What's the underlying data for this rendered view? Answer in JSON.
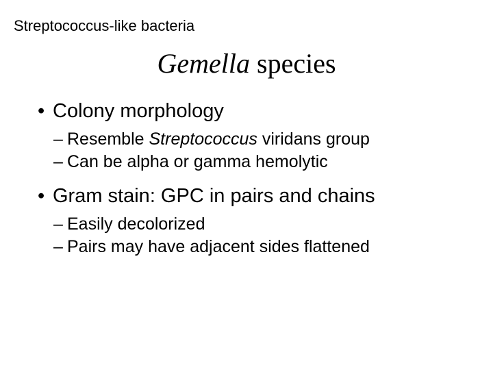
{
  "header": "Streptococcus-like bacteria",
  "title": {
    "italic_part": "Gemella",
    "plain_part": " species"
  },
  "bullets": [
    {
      "text": "Colony morphology",
      "subs": [
        {
          "prefix": "Resemble ",
          "italic": "Streptococcus",
          "suffix": " viridans group"
        },
        {
          "prefix": "Can be alpha or gamma hemolytic",
          "italic": "",
          "suffix": ""
        }
      ]
    },
    {
      "text": "Gram stain:  GPC in pairs and chains",
      "subs": [
        {
          "prefix": "Easily decolorized",
          "italic": "",
          "suffix": ""
        },
        {
          "prefix": "Pairs may have adjacent sides flattened",
          "italic": "",
          "suffix": ""
        }
      ]
    }
  ],
  "colors": {
    "background": "#ffffff",
    "text": "#000000"
  },
  "typography": {
    "header_fontsize": 22,
    "title_fontsize": 40,
    "bullet_fontsize": 29,
    "sub_fontsize": 25
  }
}
